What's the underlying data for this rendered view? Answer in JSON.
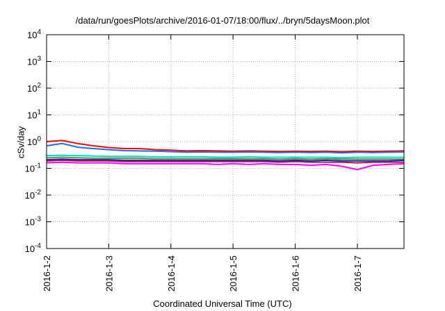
{
  "chart_data": {
    "type": "line",
    "title": "/data/run/goesPlots/archive/2016-01-07/18:00/flux/../bryn/5daysMoon.plot",
    "xlabel": "Coordinated Universal Time (UTC)",
    "ylabel": "cSv/day",
    "xlim": [
      "2016-01-02",
      "2016-01-07 18:00"
    ],
    "ylim": [
      0.0001,
      10000
    ],
    "yscale": "log",
    "grid": true,
    "legend": "none",
    "x_ticks": [
      "2016-1-2",
      "2016-1-3",
      "2016-1-4",
      "2016-1-5",
      "2016-1-6",
      "2016-1-7"
    ],
    "y_ticks": [
      {
        "value": 0.0001,
        "base": "10",
        "exp": "-4"
      },
      {
        "value": 0.001,
        "base": "10",
        "exp": "-3"
      },
      {
        "value": 0.01,
        "base": "10",
        "exp": "-2"
      },
      {
        "value": 0.1,
        "base": "10",
        "exp": "-1"
      },
      {
        "value": 1,
        "base": "10",
        "exp": "0"
      },
      {
        "value": 10,
        "base": "10",
        "exp": "1"
      },
      {
        "value": 100,
        "base": "10",
        "exp": "2"
      },
      {
        "value": 1000,
        "base": "10",
        "exp": "3"
      },
      {
        "value": 10000,
        "base": "10",
        "exp": "4"
      }
    ],
    "x": [
      "2016-01-02 00:00",
      "2016-01-02 06:00",
      "2016-01-02 12:00",
      "2016-01-02 18:00",
      "2016-01-03 00:00",
      "2016-01-03 06:00",
      "2016-01-03 12:00",
      "2016-01-03 18:00",
      "2016-01-04 00:00",
      "2016-01-04 06:00",
      "2016-01-04 12:00",
      "2016-01-04 18:00",
      "2016-01-05 00:00",
      "2016-01-05 06:00",
      "2016-01-05 12:00",
      "2016-01-05 18:00",
      "2016-01-06 00:00",
      "2016-01-06 06:00",
      "2016-01-06 12:00",
      "2016-01-06 18:00",
      "2016-01-07 00:00",
      "2016-01-07 06:00",
      "2016-01-07 12:00",
      "2016-01-07 18:00"
    ],
    "series": [
      {
        "color": "#ff0000",
        "values": [
          1.0,
          1.1,
          0.85,
          0.7,
          0.6,
          0.55,
          0.55,
          0.5,
          0.48,
          0.45,
          0.46,
          0.45,
          0.44,
          0.45,
          0.44,
          0.43,
          0.44,
          0.43,
          0.44,
          0.42,
          0.44,
          0.43,
          0.44,
          0.45
        ]
      },
      {
        "color": "#1c6fe8",
        "values": [
          0.7,
          0.85,
          0.62,
          0.55,
          0.5,
          0.46,
          0.45,
          0.44,
          0.42,
          0.4,
          0.41,
          0.4,
          0.4,
          0.41,
          0.4,
          0.39,
          0.4,
          0.39,
          0.4,
          0.38,
          0.4,
          0.39,
          0.4,
          0.41
        ]
      },
      {
        "color": "#00d8c8",
        "values": [
          0.3,
          0.31,
          0.3,
          0.29,
          0.28,
          0.28,
          0.28,
          0.27,
          0.27,
          0.27,
          0.27,
          0.26,
          0.26,
          0.27,
          0.26,
          0.26,
          0.26,
          0.26,
          0.26,
          0.25,
          0.26,
          0.26,
          0.26,
          0.26
        ]
      },
      {
        "color": "#4a9a4a",
        "values": [
          0.25,
          0.26,
          0.25,
          0.24,
          0.24,
          0.24,
          0.24,
          0.23,
          0.23,
          0.23,
          0.23,
          0.23,
          0.23,
          0.23,
          0.23,
          0.22,
          0.23,
          0.22,
          0.23,
          0.22,
          0.22,
          0.22,
          0.22,
          0.22
        ]
      },
      {
        "color": "#2020a0",
        "values": [
          0.21,
          0.22,
          0.21,
          0.21,
          0.21,
          0.2,
          0.2,
          0.2,
          0.2,
          0.2,
          0.2,
          0.2,
          0.2,
          0.2,
          0.2,
          0.19,
          0.2,
          0.19,
          0.2,
          0.19,
          0.19,
          0.19,
          0.19,
          0.2
        ]
      },
      {
        "color": "#b01060",
        "values": [
          0.19,
          0.2,
          0.19,
          0.19,
          0.19,
          0.18,
          0.18,
          0.18,
          0.18,
          0.18,
          0.18,
          0.18,
          0.18,
          0.18,
          0.18,
          0.17,
          0.18,
          0.17,
          0.17,
          0.17,
          0.16,
          0.17,
          0.17,
          0.17
        ]
      },
      {
        "color": "#ff00ff",
        "values": [
          0.16,
          0.17,
          0.16,
          0.16,
          0.16,
          0.15,
          0.15,
          0.15,
          0.15,
          0.15,
          0.15,
          0.14,
          0.15,
          0.14,
          0.15,
          0.14,
          0.14,
          0.13,
          0.14,
          0.12,
          0.09,
          0.13,
          0.14,
          0.15
        ]
      }
    ]
  }
}
